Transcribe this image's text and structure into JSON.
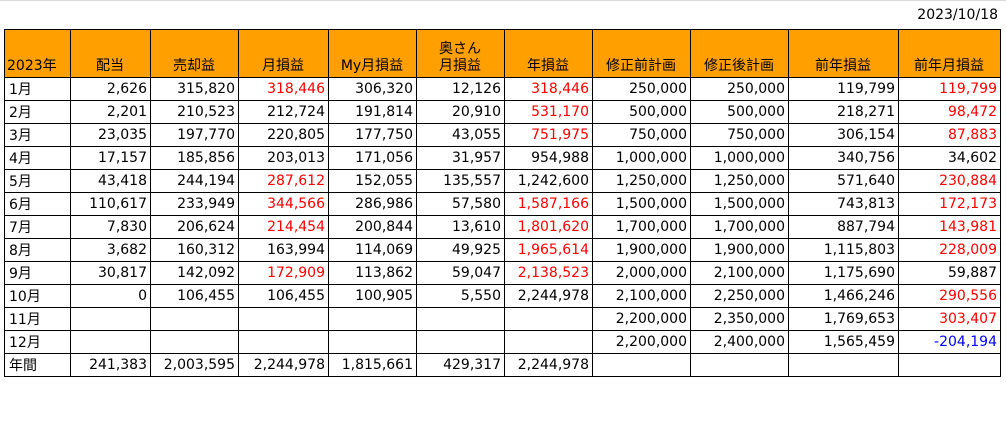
{
  "date": "2023/10/18",
  "headers": [
    "2023年",
    "配当",
    "売却益",
    "月損益",
    "My月損益",
    "奥さん\n月損益",
    "年損益",
    "修正前計画",
    "修正後計画",
    "前年損益",
    "前年月損益"
  ],
  "rows": [
    {
      "month": "1月",
      "cells": [
        "2,626",
        "315,820",
        "318,446",
        "306,320",
        "12,126",
        "318,446",
        "250,000",
        "250,000",
        "119,799",
        "119,799"
      ]
    },
    {
      "month": "2月",
      "cells": [
        "2,201",
        "210,523",
        "212,724",
        "191,814",
        "20,910",
        "531,170",
        "500,000",
        "500,000",
        "218,271",
        "98,472"
      ]
    },
    {
      "month": "3月",
      "cells": [
        "23,035",
        "197,770",
        "220,805",
        "177,750",
        "43,055",
        "751,975",
        "750,000",
        "750,000",
        "306,154",
        "87,883"
      ]
    },
    {
      "month": "4月",
      "cells": [
        "17,157",
        "185,856",
        "203,013",
        "171,056",
        "31,957",
        "954,988",
        "1,000,000",
        "1,000,000",
        "340,756",
        "34,602"
      ]
    },
    {
      "month": "5月",
      "cells": [
        "43,418",
        "244,194",
        "287,612",
        "152,055",
        "135,557",
        "1,242,600",
        "1,250,000",
        "1,250,000",
        "571,640",
        "230,884"
      ]
    },
    {
      "month": "6月",
      "cells": [
        "110,617",
        "233,949",
        "344,566",
        "286,986",
        "57,580",
        "1,587,166",
        "1,500,000",
        "1,500,000",
        "743,813",
        "172,173"
      ]
    },
    {
      "month": "7月",
      "cells": [
        "7,830",
        "206,624",
        "214,454",
        "200,844",
        "13,610",
        "1,801,620",
        "1,700,000",
        "1,700,000",
        "887,794",
        "143,981"
      ]
    },
    {
      "month": "8月",
      "cells": [
        "3,682",
        "160,312",
        "163,994",
        "114,069",
        "49,925",
        "1,965,614",
        "1,900,000",
        "1,900,000",
        "1,115,803",
        "228,009"
      ]
    },
    {
      "month": "9月",
      "cells": [
        "30,817",
        "142,092",
        "172,909",
        "113,862",
        "59,047",
        "2,138,523",
        "2,000,000",
        "2,100,000",
        "1,175,690",
        "59,887"
      ]
    },
    {
      "month": "10月",
      "cells": [
        "0",
        "106,455",
        "106,455",
        "100,905",
        "5,550",
        "2,244,978",
        "2,100,000",
        "2,250,000",
        "1,466,246",
        "290,556"
      ]
    },
    {
      "month": "11月",
      "cells": [
        "",
        "",
        "",
        "",
        "",
        "",
        "2,200,000",
        "2,350,000",
        "1,769,653",
        "303,407"
      ]
    },
    {
      "month": "12月",
      "cells": [
        "",
        "",
        "",
        "",
        "",
        "",
        "2,200,000",
        "2,400,000",
        "1,565,459",
        "-204,194"
      ]
    },
    {
      "month": "年間",
      "cells": [
        "241,383",
        "2,003,595",
        "2,244,978",
        "1,815,661",
        "429,317",
        "2,244,978",
        "",
        "",
        "",
        ""
      ]
    }
  ],
  "colors": {
    "header_bg": "#ffa000",
    "positive_highlight": "#ff0000",
    "negative": "#0000ff"
  }
}
